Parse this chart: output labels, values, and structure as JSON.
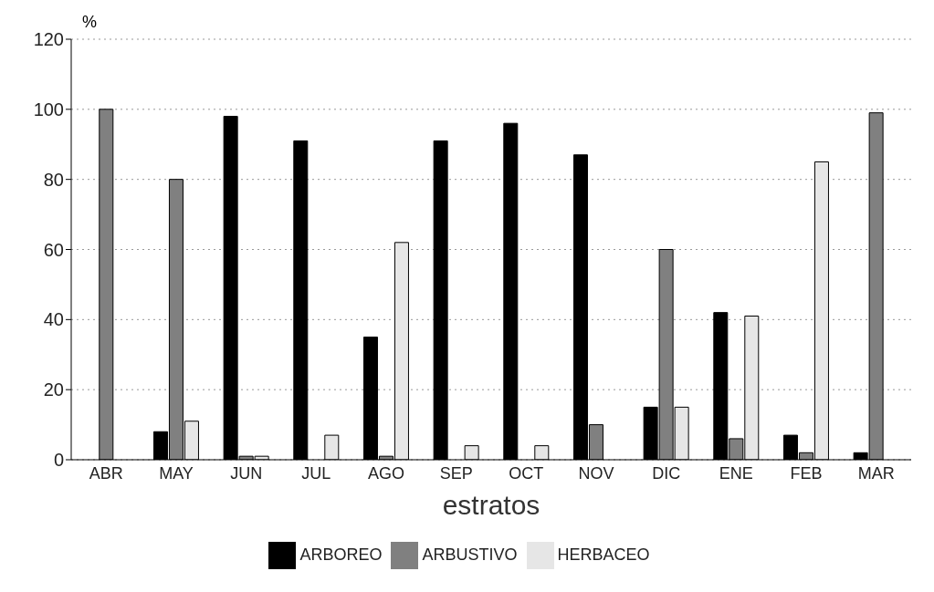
{
  "chart_data": {
    "type": "bar",
    "ylabel": "%",
    "xlabel": "estratos",
    "categories": [
      "ABR",
      "MAY",
      "JUN",
      "JUL",
      "AGO",
      "SEP",
      "OCT",
      "NOV",
      "DIC",
      "ENE",
      "FEB",
      "MAR"
    ],
    "series": [
      {
        "name": "ARBOREO",
        "color": "#000000",
        "values": [
          0,
          8,
          98,
          91,
          35,
          91,
          96,
          87,
          15,
          42,
          7,
          2
        ]
      },
      {
        "name": "ARBUSTIVO",
        "color": "#808080",
        "values": [
          100,
          80,
          1,
          0,
          1,
          0,
          0,
          10,
          60,
          6,
          2,
          99
        ]
      },
      {
        "name": "HERBACEO",
        "color": "#e6e6e6",
        "values": [
          0,
          11,
          1,
          7,
          62,
          4,
          4,
          0,
          15,
          41,
          85,
          0
        ]
      }
    ],
    "ylim": [
      0,
      120
    ],
    "yticks": [
      0,
      20,
      40,
      60,
      80,
      100,
      120
    ],
    "grid": "y",
    "legend": "bottom"
  }
}
